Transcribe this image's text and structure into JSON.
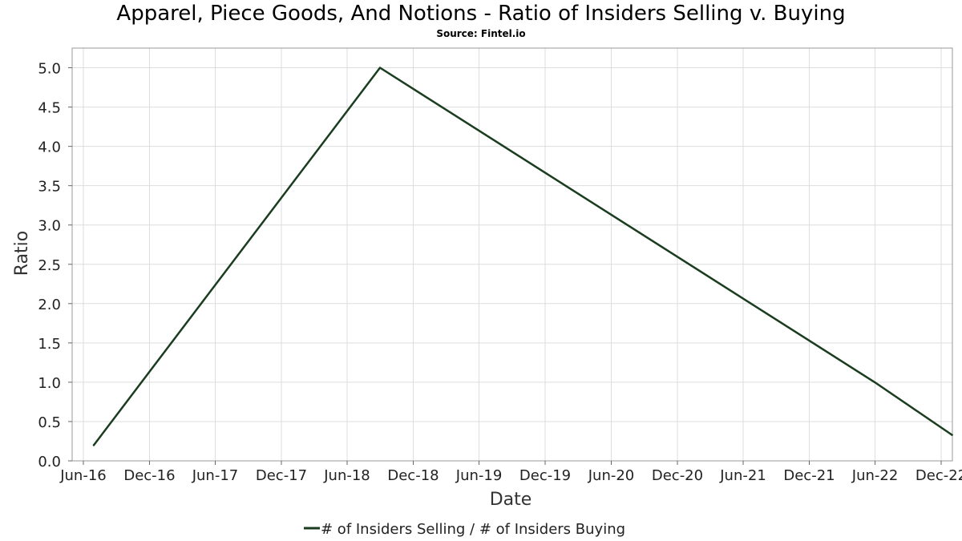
{
  "chart_data": {
    "type": "line",
    "title": "Apparel, Piece Goods, And Notions - Ratio of Insiders Selling v. Buying",
    "subtitle": "Source: Fintel.io",
    "xlabel": "Date",
    "ylabel": "Ratio",
    "x_tick_labels": [
      "Jun-16",
      "Dec-16",
      "Jun-17",
      "Dec-17",
      "Jun-18",
      "Dec-18",
      "Jun-19",
      "Dec-19",
      "Jun-20",
      "Dec-20",
      "Jun-21",
      "Dec-21",
      "Jun-22",
      "Dec-22"
    ],
    "x_tick_dates": [
      "2016-06-01",
      "2016-12-01",
      "2017-06-01",
      "2017-12-01",
      "2018-06-01",
      "2018-12-01",
      "2019-06-01",
      "2019-12-01",
      "2020-06-01",
      "2020-12-01",
      "2021-06-01",
      "2021-12-01",
      "2022-06-01",
      "2022-12-01"
    ],
    "xlim": [
      "2016-05-01",
      "2023-01-01"
    ],
    "ylim": [
      0,
      5.25
    ],
    "y_ticks": [
      "0.0",
      "0.5",
      "1.0",
      "1.5",
      "2.0",
      "2.5",
      "3.0",
      "3.5",
      "4.0",
      "4.5",
      "5.0"
    ],
    "grid": true,
    "legend_position": "bottom-center",
    "series": [
      {
        "name": "# of Insiders Selling / # of Insiders Buying",
        "color": "#1b3d1f",
        "points": [
          {
            "x": "2016-06-30",
            "y": 0.2
          },
          {
            "x": "2018-08-31",
            "y": 5.0
          },
          {
            "x": "2022-05-31",
            "y": 1.0
          },
          {
            "x": "2022-12-31",
            "y": 0.33
          }
        ]
      }
    ]
  }
}
